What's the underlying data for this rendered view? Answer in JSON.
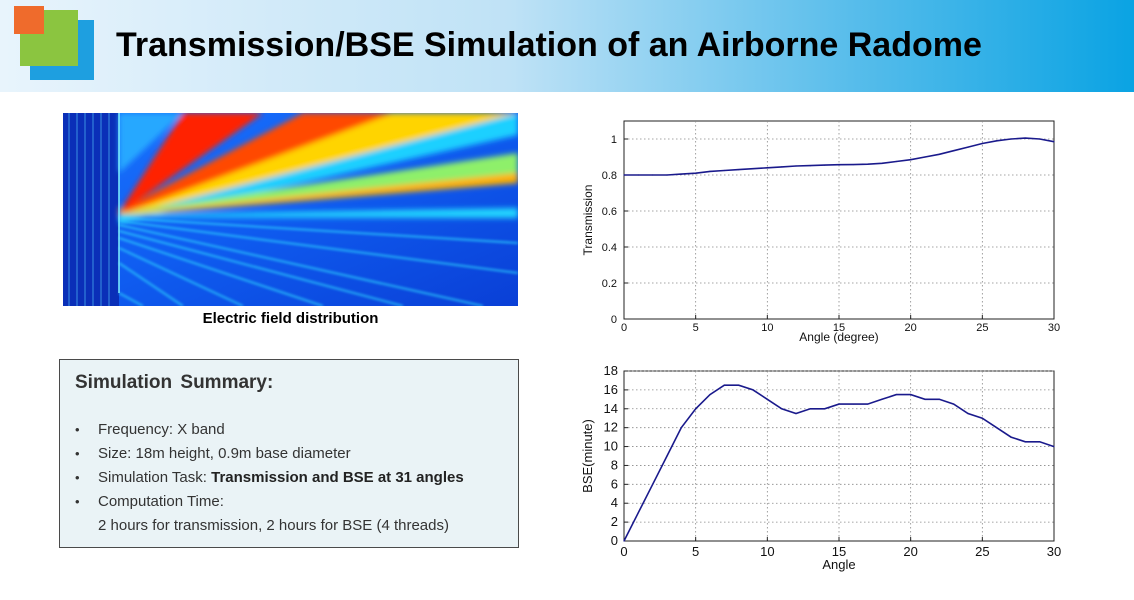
{
  "header": {
    "title": "Transmission/BSE Simulation of an Airborne Radome",
    "logo_colors": [
      "#ef6b2c",
      "#8bc540",
      "#1e9fe0"
    ]
  },
  "field_figure": {
    "caption": "Electric field distribution",
    "colormap": "jet"
  },
  "summary": {
    "heading": "Simulation  Summary:",
    "items": [
      {
        "label": "Frequency: X band",
        "bold": ""
      },
      {
        "label": "Size: 18m height, 0.9m base diameter",
        "bold": ""
      },
      {
        "label": "Simulation Task: ",
        "bold": "Transmission and BSE at 31 angles"
      },
      {
        "label": "Computation Time:",
        "bold": "",
        "line2": "2 hours for transmission, 2 hours for BSE (4 threads)"
      }
    ]
  },
  "chart_data": [
    {
      "type": "line",
      "title": "",
      "xlabel": "Angle (degree)",
      "ylabel": "Transmission",
      "xlim": [
        0,
        30
      ],
      "ylim": [
        0,
        1.1
      ],
      "xticks": [
        0,
        5,
        10,
        15,
        20,
        25,
        30
      ],
      "yticks": [
        0,
        0.2,
        0.4,
        0.6,
        0.8,
        1
      ],
      "grid": true,
      "color": "#1a1a8c",
      "series": [
        {
          "x": [
            0,
            1,
            2,
            3,
            4,
            5,
            6,
            7,
            8,
            9,
            10,
            11,
            12,
            13,
            14,
            15,
            16,
            17,
            18,
            19,
            20,
            21,
            22,
            23,
            24,
            25,
            26,
            27,
            28,
            29,
            30
          ],
          "values": [
            0.8,
            0.8,
            0.8,
            0.8,
            0.805,
            0.81,
            0.82,
            0.825,
            0.83,
            0.835,
            0.84,
            0.845,
            0.85,
            0.852,
            0.855,
            0.857,
            0.858,
            0.86,
            0.865,
            0.875,
            0.885,
            0.9,
            0.915,
            0.935,
            0.955,
            0.975,
            0.99,
            1.0,
            1.005,
            1.0,
            0.985
          ]
        }
      ]
    },
    {
      "type": "line",
      "title": "",
      "xlabel": "Angle",
      "ylabel": "BSE(minute)",
      "xlim": [
        0,
        30
      ],
      "ylim": [
        0,
        18
      ],
      "xticks": [
        0,
        5,
        10,
        15,
        20,
        25,
        30
      ],
      "yticks": [
        0,
        2,
        4,
        6,
        8,
        10,
        12,
        14,
        16,
        18
      ],
      "grid": true,
      "color": "#1a1a8c",
      "series": [
        {
          "x": [
            0,
            1,
            2,
            3,
            4,
            5,
            6,
            7,
            8,
            9,
            10,
            11,
            12,
            13,
            14,
            15,
            16,
            17,
            18,
            19,
            20,
            21,
            22,
            23,
            24,
            25,
            26,
            27,
            28,
            29,
            30
          ],
          "values": [
            0,
            3,
            6,
            9,
            12,
            14,
            15.5,
            16.5,
            16.5,
            16,
            15,
            14,
            13.5,
            14,
            14,
            14.5,
            14.5,
            14.5,
            15,
            15.5,
            15.5,
            15,
            15,
            14.5,
            13.5,
            13,
            12,
            11,
            10.5,
            10.5,
            10
          ]
        }
      ]
    }
  ]
}
